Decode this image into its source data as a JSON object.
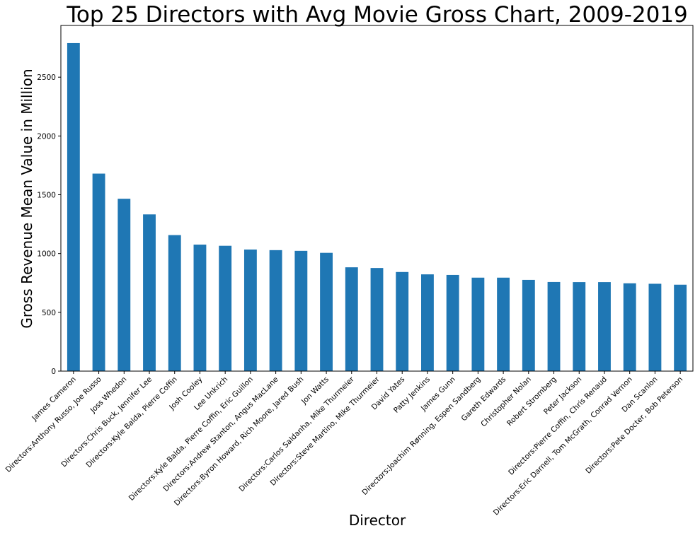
{
  "chart_data": {
    "type": "bar",
    "title": "Top 25 Directors with Avg Movie Gross Chart, 2009-2019",
    "xlabel": "Director",
    "ylabel": "Gross Revenue Mean Value in Million",
    "ylim": [
      0,
      2940
    ],
    "yticks": [
      0,
      500,
      1000,
      1500,
      2000,
      2500
    ],
    "grid": false,
    "legend": "none",
    "bar_color": "#1f77b4",
    "categories": [
      "James Cameron",
      "Directors:Anthony Russo, Joe Russo",
      "Joss Whedon",
      "Directors:Chris Buck, Jennifer Lee",
      "Directors:Kyle Balda, Pierre Coffin",
      "Josh Cooley",
      "Lee Unkrich",
      "Directors:Kyle Balda, Pierre Coffin, Eric Guillon",
      "Directors:Andrew Stanton, Angus MacLane",
      "Directors:Byron Howard, Rich Moore, Jared Bush",
      "Jon Watts",
      "Directors:Carlos Saldanha, Mike Thurmeier",
      "Directors:Steve Martino, Mike Thurmeier",
      "David Yates",
      "Patty Jenkins",
      "James Gunn",
      "Directors:Joachim Rønning, Espen Sandberg",
      "Gareth Edwards",
      "Christopher Nolan",
      "Robert Stromberg",
      "Peter Jackson",
      "Directors:Pierre Coffin, Chris Renaud",
      "Directors:Eric Darnell, Tom McGrath, Conrad Vernon",
      "Dan Scanlon",
      "Directors:Pete Docter, Bob Peterson"
    ],
    "values": [
      2790,
      1680,
      1466,
      1333,
      1157,
      1076,
      1066,
      1034,
      1029,
      1023,
      1006,
      883,
      877,
      843,
      823,
      818,
      795,
      795,
      776,
      758,
      757,
      757,
      747,
      743,
      735
    ]
  }
}
